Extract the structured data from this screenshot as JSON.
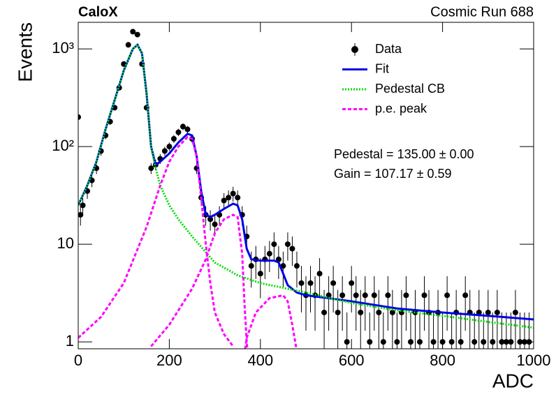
{
  "chart_data": {
    "type": "line",
    "title": "CaloX",
    "subtitle": "Cosmic Run 688",
    "x_label": "ADC",
    "y_label": "Events",
    "annotations": [
      "Pedestal = 135.00 ± 0.00",
      "Gain = 107.17 ± 0.59"
    ],
    "log_y": true,
    "legend": "upper right",
    "xlim": [
      0,
      1000
    ],
    "xticks": [
      0,
      200,
      400,
      600,
      800,
      1000
    ],
    "ylim": [
      0.85,
      1870
    ],
    "yticks": [
      1,
      10,
      {
        "value": 100,
        "label": "10²"
      },
      {
        "value": 1000,
        "label": "10³"
      }
    ],
    "series": [
      {
        "name": "Data",
        "kind": "points",
        "color": "#000000",
        "x": [
          0,
          5,
          10,
          20,
          30,
          40,
          50,
          60,
          70,
          80,
          90,
          100,
          110,
          120,
          130,
          140,
          150,
          160,
          170,
          180,
          190,
          200,
          210,
          220,
          230,
          240,
          250,
          260,
          270,
          280,
          290,
          300,
          310,
          320,
          330,
          340,
          350,
          360,
          370,
          380,
          390,
          400,
          410,
          420,
          430,
          440,
          450,
          460,
          470,
          480,
          490,
          500,
          510,
          520,
          530,
          540,
          550,
          560,
          570,
          580,
          590,
          600,
          610,
          620,
          630,
          640,
          650,
          660,
          670,
          680,
          690,
          700,
          710,
          720,
          730,
          740,
          750,
          760,
          770,
          780,
          790,
          800,
          810,
          820,
          830,
          840,
          850,
          860,
          870,
          880,
          890,
          900,
          910,
          920,
          930,
          940,
          950,
          960,
          970,
          980,
          990
        ],
        "values": [
          200,
          20,
          25,
          35,
          45,
          60,
          90,
          130,
          180,
          250,
          400,
          700,
          1100,
          1500,
          1400,
          700,
          250,
          60,
          65,
          75,
          90,
          100,
          120,
          140,
          160,
          150,
          120,
          60,
          30,
          20,
          18,
          16,
          20,
          28,
          30,
          33,
          30,
          20,
          12,
          6,
          7,
          5,
          7,
          8,
          10,
          7,
          6,
          10,
          9,
          6,
          4,
          3,
          4,
          3,
          5,
          2,
          3,
          4,
          2,
          3,
          1,
          4,
          3,
          2,
          3,
          1,
          3,
          2,
          1,
          3,
          2,
          1,
          2,
          3,
          1,
          2,
          1,
          3,
          2,
          1,
          2,
          1,
          3,
          1,
          2,
          1,
          3,
          2,
          1,
          2,
          1,
          2,
          1,
          2,
          1,
          1,
          1,
          2,
          1,
          1,
          1
        ],
        "errors": [
          14,
          4.5,
          5,
          5.9,
          6.7,
          7.7,
          9.5,
          11.4,
          13.4,
          15.8,
          20,
          26.5,
          33.2,
          38.7,
          37.4,
          26.5,
          15.8,
          7.7,
          8.1,
          8.7,
          9.5,
          10,
          11,
          11.8,
          12.6,
          12.2,
          11,
          7.7,
          5.5,
          4.5,
          4.2,
          4,
          4.5,
          5.3,
          5.5,
          5.7,
          5.5,
          4.5,
          3.5,
          2.4,
          2.6,
          2.2,
          2.6,
          2.8,
          3.2,
          2.6,
          2.4,
          3.2,
          3,
          2.4,
          2,
          1.7,
          2,
          1.7,
          2.2,
          1.4,
          1.7,
          2,
          1.4,
          1.7,
          1,
          2,
          1.7,
          1.4,
          1.7,
          1,
          1.7,
          1.4,
          1,
          1.7,
          1.4,
          1,
          1.4,
          1.7,
          1,
          1.4,
          1,
          1.7,
          1.4,
          1,
          1.4,
          1,
          1.7,
          1,
          1.4,
          1,
          1.7,
          1.4,
          1,
          1.4,
          1,
          1.4,
          1,
          1.4,
          1,
          1,
          1,
          1.4,
          1,
          1,
          1
        ]
      },
      {
        "name": "Fit",
        "kind": "line",
        "dash": "solid",
        "color": "#0000e6",
        "x": [
          0,
          20,
          40,
          60,
          80,
          100,
          120,
          130,
          140,
          150,
          160,
          170,
          180,
          200,
          220,
          240,
          250,
          260,
          270,
          280,
          290,
          300,
          320,
          340,
          350,
          360,
          370,
          380,
          400,
          430,
          440,
          450,
          460,
          480,
          500,
          550,
          600,
          700,
          800,
          900,
          1000
        ],
        "values": [
          25,
          40,
          70,
          150,
          300,
          600,
          1000,
          1100,
          900,
          350,
          100,
          65,
          70,
          85,
          110,
          135,
          130,
          80,
          35,
          20,
          19,
          20,
          23,
          26,
          25,
          18,
          9,
          7,
          6.8,
          6.8,
          6.5,
          5,
          3.8,
          3.2,
          3,
          2.8,
          2.6,
          2.2,
          2,
          1.85,
          1.7
        ]
      },
      {
        "name": "Pedestal CB",
        "kind": "line",
        "dash": "dotted",
        "color": "#00dd00",
        "x": [
          0,
          20,
          40,
          60,
          80,
          100,
          120,
          130,
          140,
          150,
          160,
          170,
          180,
          200,
          220,
          250,
          300,
          350,
          400,
          500,
          600,
          700,
          800,
          900,
          1000
        ],
        "values": [
          25,
          40,
          70,
          150,
          300,
          600,
          1000,
          1100,
          900,
          350,
          100,
          60,
          40,
          25,
          18,
          12,
          6.5,
          4.8,
          4,
          3.2,
          2.5,
          2.1,
          1.85,
          1.6,
          1.4
        ]
      },
      {
        "name": "p.e. peak",
        "kind": "line",
        "dash": "dashed",
        "color": "#ff00ff",
        "x": [
          0,
          50,
          100,
          150,
          180,
          200,
          220,
          240,
          250,
          260,
          270,
          280,
          290,
          300,
          320,
          340,
          null,
          160,
          200,
          250,
          280,
          300,
          320,
          340,
          350,
          360,
          365,
          370,
          375,
          null,
          360,
          370,
          390,
          420,
          450,
          460,
          470,
          480
        ],
        "values": [
          1.1,
          1.8,
          4,
          15,
          40,
          70,
          100,
          125,
          120,
          80,
          30,
          10,
          4,
          2,
          1.2,
          0.9,
          null,
          0.9,
          1.5,
          3.5,
          7,
          13,
          18,
          20,
          19,
          8,
          2.5,
          1,
          0.5,
          null,
          0.5,
          1.1,
          2,
          2.8,
          3,
          2.6,
          1.5,
          0.8
        ]
      }
    ]
  }
}
